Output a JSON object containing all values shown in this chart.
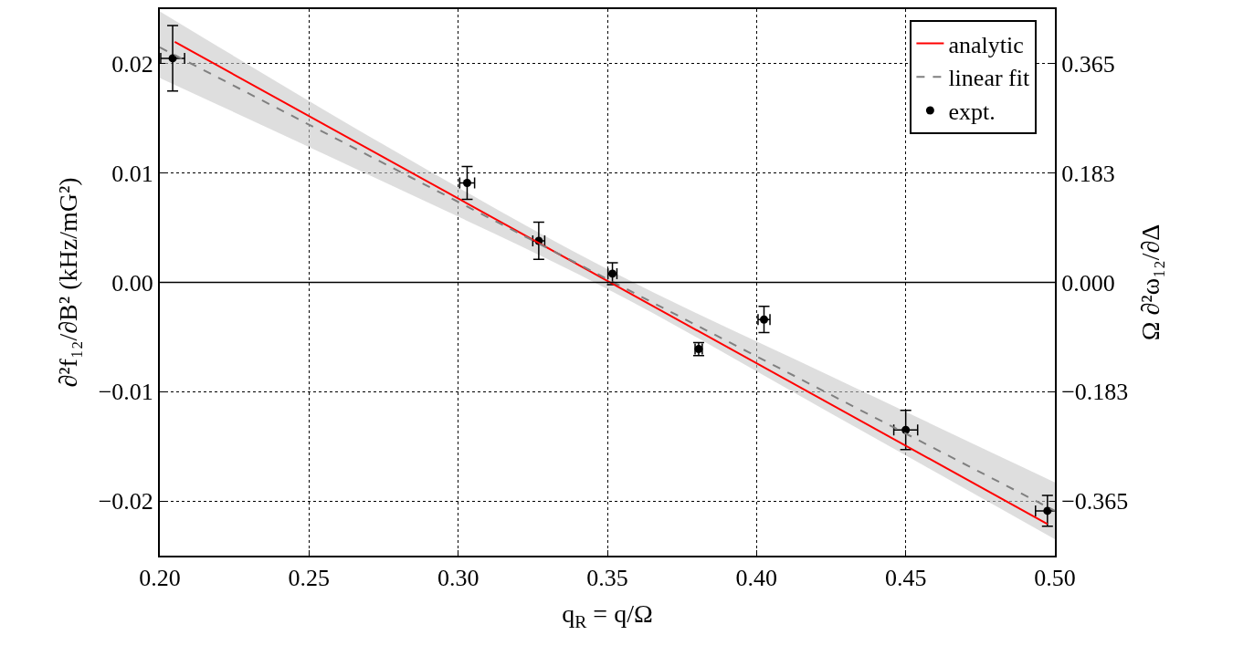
{
  "chart_data": {
    "type": "scatter",
    "xlabel": "q$_{R}$ = q/Ω",
    "ylabel": "∂²f₁₂/∂B² (kHz/mG²)",
    "y2label": "Ω ∂²ω₁₂/∂Δ",
    "xlim": [
      0.2,
      0.5
    ],
    "xticks": [
      {
        "value": 0.2,
        "label": "0.20"
      },
      0.25,
      {
        "value": 0.3,
        "label": "0.30"
      },
      0.35,
      {
        "value": 0.4,
        "label": "0.40"
      },
      0.45,
      {
        "value": 0.5,
        "label": "0.50"
      }
    ],
    "ylim": [
      -0.025,
      0.025
    ],
    "yticks": [
      {
        "value": -0.02,
        "label": "−0.02"
      },
      {
        "value": -0.01,
        "label": "−0.01"
      },
      {
        "value": 0,
        "label": "0.00"
      },
      0.01,
      0.02
    ],
    "y2lim": [
      -0.45625,
      0.45625
    ],
    "y2ticks": [
      {
        "value": -0.365,
        "label": "−0.365"
      },
      {
        "value": -0.1825,
        "label": "−0.183"
      },
      {
        "value": 0,
        "label": "0.000"
      },
      {
        "value": 0.1825,
        "label": "0.183"
      },
      0.365
    ],
    "grid": true,
    "legend": "top right",
    "ref_lines": [
      {
        "axis": "y",
        "value": 0,
        "color": "#000000",
        "line_style": "solid"
      }
    ],
    "series": [
      {
        "name": "analytic",
        "type": "line",
        "color": "#ff0000",
        "line_style": "solid",
        "marker": "none",
        "x": [
          0.205,
          0.4975
        ],
        "values": [
          0.022,
          -0.0221
        ]
      },
      {
        "name": "linear fit",
        "type": "line",
        "color": "#808080",
        "line_style": "dashed",
        "marker": "none",
        "x": [
          0.2,
          0.275,
          0.35,
          0.425,
          0.5
        ],
        "values": [
          0.0215,
          0.0109,
          0.0003,
          -0.0103,
          -0.0209
        ],
        "lower": [
          0.0187,
          0.0092,
          -0.0006,
          -0.012,
          -0.0235
        ],
        "upper": [
          0.0248,
          0.0126,
          0.0012,
          -0.0086,
          -0.0183
        ]
      },
      {
        "name": "expt.",
        "type": "scatter",
        "color": "#000000",
        "marker": "circle",
        "x": [
          0.2043,
          0.303,
          0.327,
          0.3517,
          0.3806,
          0.4025,
          0.45,
          0.4975
        ],
        "values": [
          0.0205,
          0.0091,
          0.0038,
          0.0008,
          -0.0061,
          -0.0034,
          -0.0135,
          -0.0209
        ],
        "errors": [
          0.003,
          0.0015,
          0.0017,
          0.001,
          0.0006,
          0.0012,
          0.0018,
          0.0014
        ],
        "xerrors": [
          0.004,
          0.0025,
          0.002,
          0.0015,
          0.0012,
          0.002,
          0.004,
          0.004
        ]
      }
    ]
  }
}
